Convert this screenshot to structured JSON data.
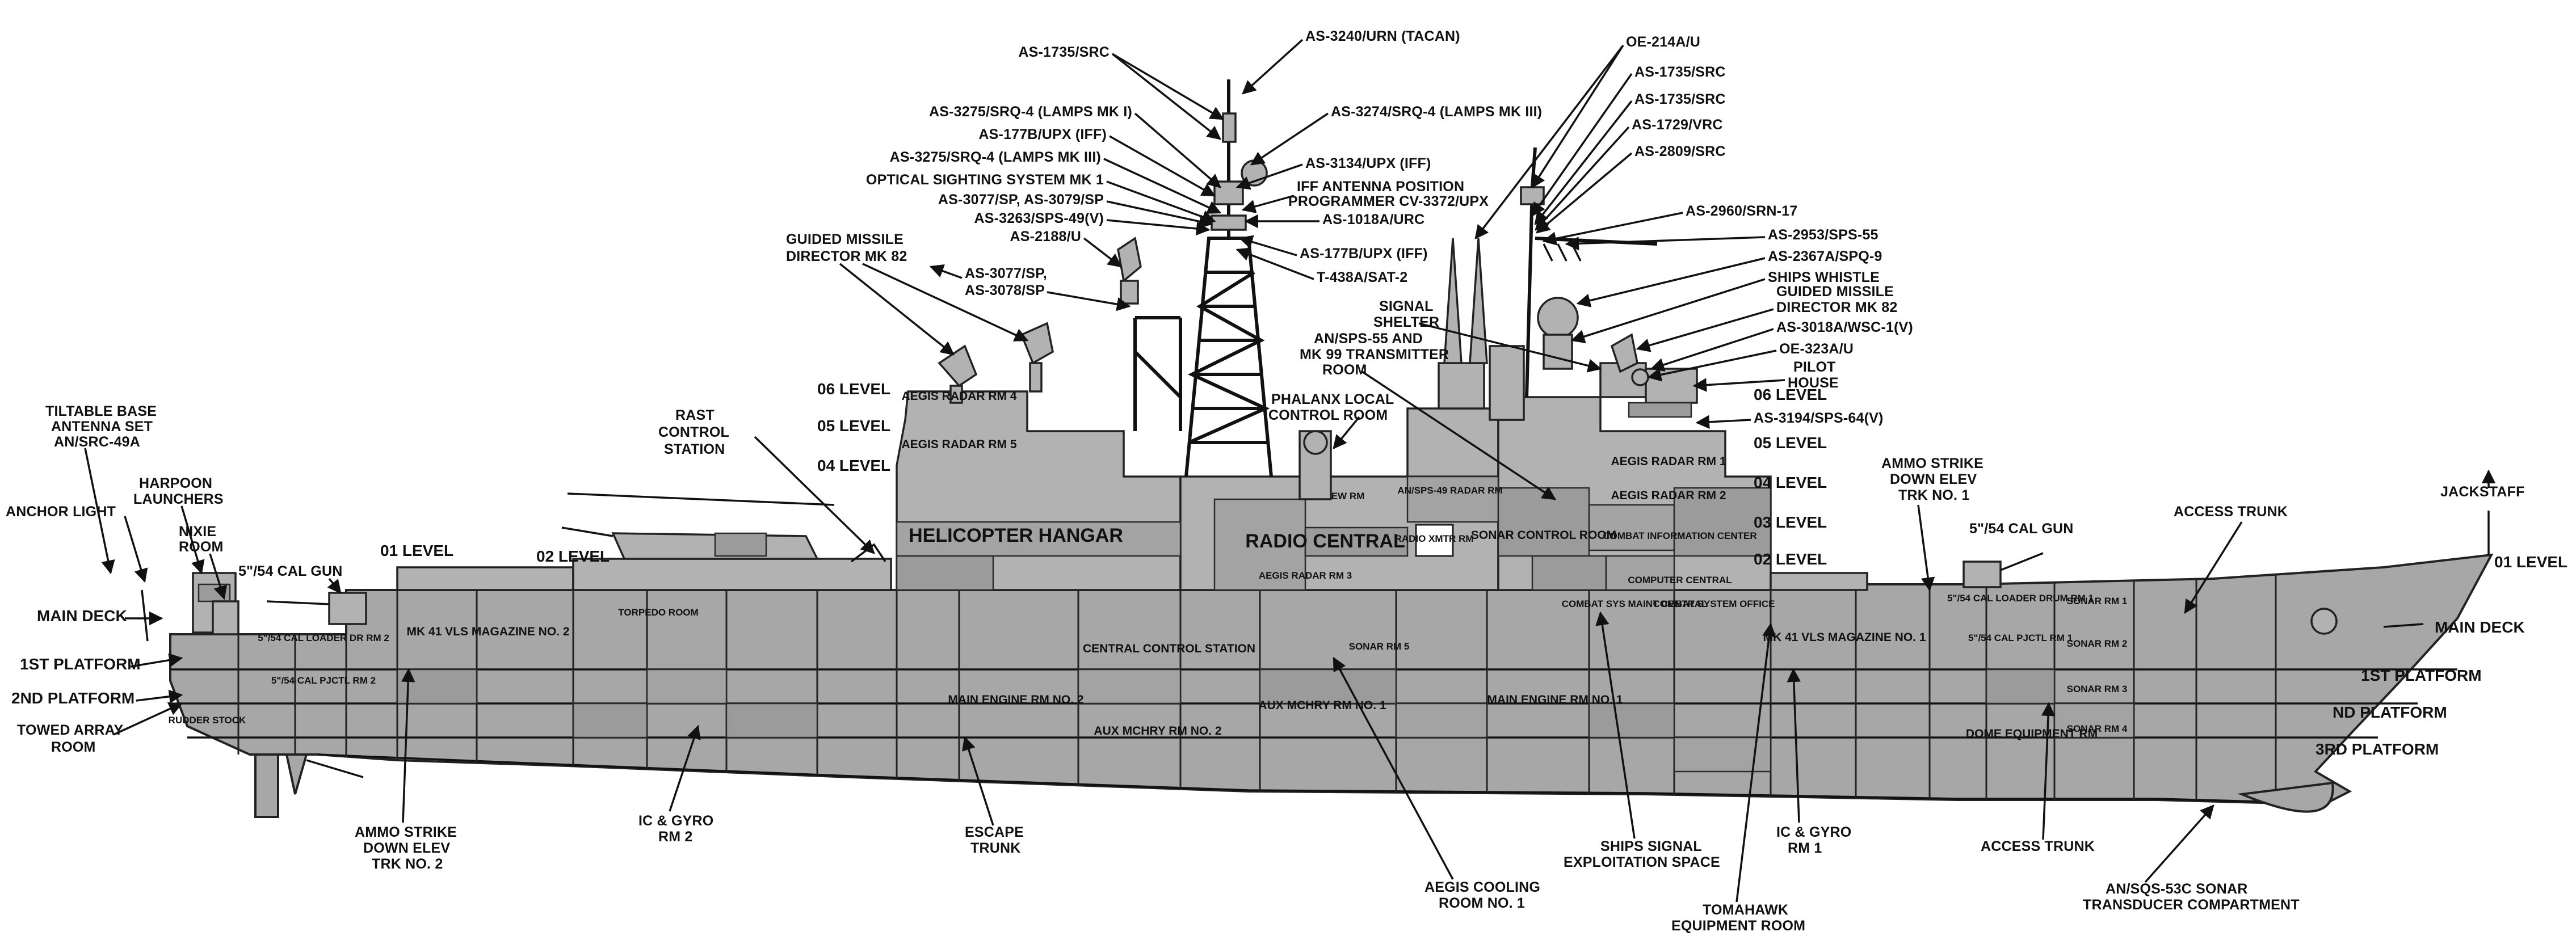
{
  "diagram": {
    "levels_aft": [
      "06 LEVEL",
      "05 LEVEL",
      "04 LEVEL",
      "01 LEVEL",
      "02 LEVEL"
    ],
    "levels_fwd": [
      "06 LEVEL",
      "05 LEVEL",
      "04 LEVEL",
      "03 LEVEL",
      "02 LEVEL",
      "01 LEVEL"
    ],
    "decks_aft": [
      "MAIN DECK",
      "1ST PLATFORM",
      "2ND PLATFORM"
    ],
    "decks_fwd": [
      "MAIN DECK",
      "1ST PLATFORM",
      "ND PLATFORM",
      "3RD PLATFORM"
    ],
    "compartments": {
      "aegis_radar_rm_4": "AEGIS RADAR RM 4",
      "aegis_radar_rm_5": "AEGIS RADAR RM 5",
      "helicopter_hangar": "HELICOPTER HANGAR",
      "mk41_vls_aft": "MK 41 VLS MAGAZINE NO. 2",
      "torpedo_room": "TORPEDO ROOM",
      "gun_loader_aft": "5\"/54 CAL LOADER DR RM 2",
      "gun_pictl_aft": "5\"/54 CAL PJCTL RM 2",
      "rudder_stock": "RUDDER STOCK",
      "main_engine_rm_2": "MAIN ENGINE RM NO. 2",
      "central_control_station": "CENTRAL CONTROL STATION",
      "aux_mchry_rm_2": "AUX MCHRY RM NO. 2",
      "ew_rm": "EW RM",
      "anspsrm": "AN/SPS-49 RADAR RM",
      "radio_central": "RADIO CENTRAL",
      "radio_xmtr_rm": "RADIO XMTR RM",
      "sonar_control_room": "SONAR CONTROL ROOM",
      "combat_information_center": "COMBAT INFORMATION CENTER",
      "computer_central": "COMPUTER CENTRAL",
      "combat_sys_maint_central": "COMBAT SYS MAINT CENTRAL",
      "combat_system_office": "COMBAT SYSTEM OFFICE",
      "aegis_radar_rm_3": "AEGIS RADAR RM 3",
      "sonar_rm_5": "SONAR RM 5",
      "aux_mchry_rm_1": "AUX MCHRY RM NO. 1",
      "main_engine_rm_1": "MAIN ENGINE RM NO. 1",
      "aegis_radar_rm_1": "AEGIS RADAR RM 1",
      "aegis_radar_rm_2": "AEGIS RADAR RM 2",
      "mk41_vls_fwd": "MK 41 VLS MAGAZINE NO. 1",
      "gun_loader_fwd": "5\"/54 CAL LOADER DRUM RM 1",
      "gun_pictl_fwd": "5\"/54 CAL PJCTL RM 1",
      "dome_equipment_rm": "DOME EQUIPMENT RM",
      "sonar_rm_1": "SONAR RM 1",
      "sonar_rm_2": "SONAR RM 2",
      "sonar_rm_3": "SONAR RM 3",
      "sonar_rm_4": "SONAR RM 4"
    },
    "callouts": {
      "as1735_src_top": "AS-1735/SRC",
      "as3240_urn": "AS-3240/URN (TACAN)",
      "as3275_mk1": "AS-3275/SRQ-4 (LAMPS MK I)",
      "as3274_mk3": "AS-3274/SRQ-4 (LAMPS MK III)",
      "as177b_upx_a": "AS-177B/UPX (IFF)",
      "as3275_mk3": "AS-3275/SRQ-4 (LAMPS MK III)",
      "as3134_upx": "AS-3134/UPX (IFF)",
      "optical_sighting": "OPTICAL SIGHTING SYSTEM MK 1",
      "iff_antenna_1": "IFF ANTENNA POSITION",
      "iff_antenna_2": "PROGRAMMER CV-3372/UPX",
      "as3077_3079": "AS-3077/SP, AS-3079/SP",
      "as1018_urc": "AS-1018A/URC",
      "as3263_sps49": "AS-3263/SPS-49(V)",
      "as2188_u": "AS-2188/U",
      "as177b_upx_b": "AS-177B/UPX (IFF)",
      "t438a_sat2": "T-438A/SAT-2",
      "gmd_aft_1": "GUIDED MISSILE",
      "gmd_aft_2": "DIRECTOR MK 82",
      "as3077_3078_1": "AS-3077/SP,",
      "as3078_2": "AS-3078/SP",
      "oe214": "OE-214A/U",
      "as1735_a": "AS-1735/SRC",
      "as1735_b": "AS-1735/SRC",
      "as1729_vrc": "AS-1729/VRC",
      "as2809_src": "AS-2809/SRC",
      "as2960_srn17": "AS-2960/SRN-17",
      "as2953_sps55": "AS-2953/SPS-55",
      "as2367_spq9": "AS-2367A/SPQ-9",
      "ships_whistle": "SHIPS WHISTLE",
      "gmd_fwd_1": "GUIDED MISSILE",
      "gmd_fwd_2": "DIRECTOR MK 82",
      "as3018_wsc1": "AS-3018A/WSC-1(V)",
      "oe323": "OE-323A/U",
      "pilot_1": "PILOT",
      "pilot_2": "HOUSE",
      "as3194_sps64": "AS-3194/SPS-64(V)",
      "signal_shelter_1": "SIGNAL",
      "signal_shelter_2": "SHELTER",
      "anps55_1": "AN/SPS-55 AND",
      "anps55_2": "MK 99 TRANSMITTER",
      "anps55_3": "ROOM",
      "phalanx_1": "PHALANX LOCAL",
      "phalanx_2": "CONTROL ROOM",
      "rast_1": "RAST",
      "rast_2": "CONTROL",
      "rast_3": "STATION",
      "tiltable_1": "TILTABLE BASE",
      "tiltable_2": "ANTENNA SET",
      "tiltable_3": "AN/SRC-49A",
      "harpoon_1": "HARPOON",
      "harpoon_2": "LAUNCHERS",
      "anchor_light": "ANCHOR LIGHT",
      "nixie_1": "NIXIE",
      "nixie_2": "ROOM",
      "gun_aft": "5\"/54 CAL GUN",
      "towed_1": "TOWED ARRAY",
      "towed_2": "ROOM",
      "ammo_aft_1": "AMMO STRIKE",
      "ammo_aft_2": "DOWN ELEV",
      "ammo_aft_3": "TRK NO. 2",
      "icgyro2_1": "IC & GYRO",
      "icgyro2_2": "RM 2",
      "escape_1": "ESCAPE",
      "escape_2": "TRUNK",
      "aegis_cool_1": "AEGIS COOLING",
      "aegis_cool_2": "ROOM NO. 1",
      "ships_signal_1": "SHIPS SIGNAL",
      "ships_signal_2": "EXPLOITATION SPACE",
      "tomahawk_1": "TOMAHAWK",
      "tomahawk_2": "EQUIPMENT ROOM",
      "icgyro1_1": "IC &  GYRO",
      "icgyro1_2": "RM 1",
      "access_trunk_low": "ACCESS TRUNK",
      "ansqs53_1": "AN/SQS-53C SONAR",
      "ansqs53_2": "TRANSDUCER COMPARTMENT",
      "ammo_fwd_1": "AMMO STRIKE",
      "ammo_fwd_2": "DOWN ELEV",
      "ammo_fwd_3": "TRK NO. 1",
      "gun_fwd": "5\"/54 CAL GUN",
      "access_trunk_top": "ACCESS TRUNK",
      "jackstaff": "JACKSTAFF"
    }
  }
}
